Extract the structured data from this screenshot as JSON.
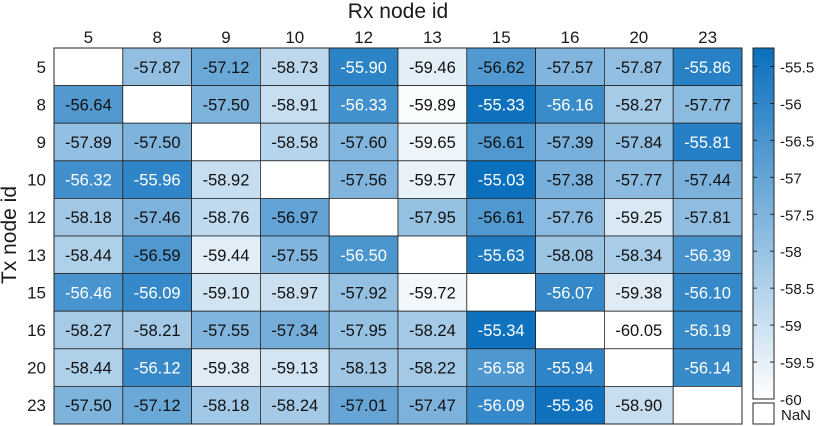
{
  "chart_data": {
    "type": "heatmap",
    "title": "",
    "xlabel": "Rx node id",
    "ylabel": "Tx node id",
    "x_categories": [
      "5",
      "8",
      "9",
      "10",
      "12",
      "13",
      "15",
      "16",
      "20",
      "23"
    ],
    "y_categories": [
      "5",
      "8",
      "9",
      "10",
      "12",
      "13",
      "15",
      "16",
      "20",
      "23"
    ],
    "values": [
      [
        null,
        -57.87,
        -57.12,
        -58.73,
        -55.9,
        -59.46,
        -56.62,
        -57.57,
        -57.87,
        -55.86
      ],
      [
        -56.64,
        null,
        -57.5,
        -58.91,
        -56.33,
        -59.89,
        -55.33,
        -56.16,
        -58.27,
        -57.77
      ],
      [
        -57.89,
        -57.5,
        null,
        -58.58,
        -57.6,
        -59.65,
        -56.61,
        -57.39,
        -57.84,
        -55.81
      ],
      [
        -56.32,
        -55.96,
        -58.92,
        null,
        -57.56,
        -59.57,
        -55.03,
        -57.38,
        -57.77,
        -57.44
      ],
      [
        -58.18,
        -57.46,
        -58.76,
        -56.97,
        null,
        -57.95,
        -56.61,
        -57.76,
        -59.25,
        -57.81
      ],
      [
        -58.44,
        -56.59,
        -59.44,
        -57.55,
        -56.5,
        null,
        -55.63,
        -58.08,
        -58.34,
        -56.39
      ],
      [
        -56.46,
        -56.09,
        -59.1,
        -58.97,
        -57.92,
        -59.72,
        null,
        -56.07,
        -59.38,
        -56.1
      ],
      [
        -58.27,
        -58.21,
        -57.55,
        -57.34,
        -57.95,
        -58.24,
        -55.34,
        null,
        -60.05,
        -56.19
      ],
      [
        -58.44,
        -56.12,
        -59.38,
        -59.13,
        -58.13,
        -58.22,
        -56.58,
        -55.94,
        null,
        -56.14
      ],
      [
        -57.5,
        -57.12,
        -58.18,
        -58.24,
        -57.01,
        -57.47,
        -56.09,
        -55.36,
        -58.9,
        null
      ]
    ],
    "colorbar": {
      "min": -60.0,
      "max": -55.25,
      "ticks": [
        "-55.5",
        "-56",
        "-56.5",
        "-57",
        "-57.5",
        "-58",
        "-58.5",
        "-59",
        "-59.5",
        "-60"
      ],
      "low_color": "#ffffff",
      "high_color": "#0a6fbd"
    },
    "nan_label": "NaN",
    "decimals": 2
  }
}
